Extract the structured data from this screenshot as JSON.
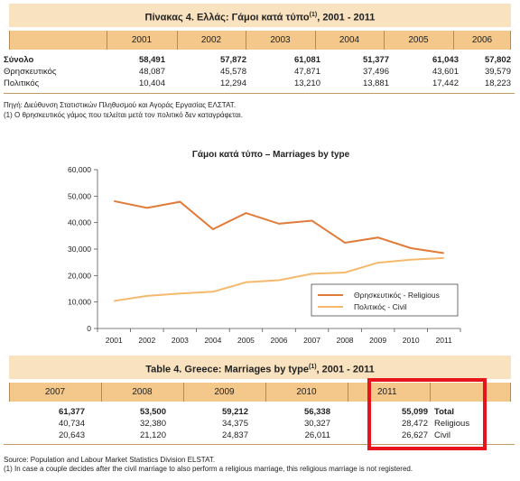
{
  "greek_table": {
    "title": "Πίνακας 4. Ελλάς: Γάμοι κατά τύπο",
    "title_sup": "(1)",
    "title_years": ", 2001 - 2011",
    "years": [
      "2001",
      "2002",
      "2003",
      "2004",
      "2005",
      "2006"
    ],
    "rows": [
      {
        "label": "Σύνολο",
        "values": [
          "58,491",
          "57,872",
          "61,081",
          "51,377",
          "61,043",
          "57,802"
        ],
        "bold": true
      },
      {
        "label": "Θρησκευτικός",
        "values": [
          "48,087",
          "45,578",
          "47,871",
          "37,496",
          "43,601",
          "39,579"
        ],
        "bold": false
      },
      {
        "label": "Πολιτικός",
        "values": [
          "10,404",
          "12,294",
          "13,210",
          "13,881",
          "17,442",
          "18,223"
        ],
        "bold": false
      }
    ],
    "source": "Πηγή: Διεύθυνση Στατιστικών Πληθυσμού και Αγοράς Εργασίας ΕΛΣΤΑΤ.",
    "footnote": "(1) Ο θρησκευτικός γάμος που τελείται μετά τον πολιτικό δεν καταγράφεται."
  },
  "chart_data": {
    "type": "line",
    "title": "Γάμοι κατά τύπο – Marriages by type",
    "categories": [
      "2001",
      "2002",
      "2003",
      "2004",
      "2005",
      "2006",
      "2007",
      "2008",
      "2009",
      "2010",
      "2011"
    ],
    "series": [
      {
        "name": "Θρησκευτικός - Religious",
        "values": [
          48087,
          45578,
          47871,
          37496,
          43601,
          39579,
          40734,
          32380,
          34375,
          30327,
          28472
        ],
        "color": "#e07b39"
      },
      {
        "name": "Πολιτικός - Civil",
        "values": [
          10404,
          12294,
          13210,
          13881,
          17442,
          18223,
          20643,
          21120,
          24837,
          26011,
          26627
        ],
        "color": "#f5b96e"
      }
    ],
    "ylim": [
      0,
      60000
    ],
    "yticks": [
      "0",
      "10,000",
      "20,000",
      "30,000",
      "40,000",
      "50,000",
      "60,000"
    ],
    "grid": false,
    "legend_position": "bottom-right"
  },
  "english_table": {
    "title": "Table 4. Greece: Marriages by type",
    "title_sup": "(1)",
    "title_years": ", 2001 - 2011",
    "years": [
      "2007",
      "2008",
      "2009",
      "2010",
      "2011"
    ],
    "rows": [
      {
        "label": "Total",
        "values": [
          "61,377",
          "53,500",
          "59,212",
          "56,338",
          "55,099"
        ],
        "bold": true
      },
      {
        "label": "Religious",
        "values": [
          "40,734",
          "32,380",
          "34,375",
          "30,327",
          "28,472"
        ],
        "bold": false
      },
      {
        "label": "Civil",
        "values": [
          "20,643",
          "21,120",
          "24,837",
          "26,011",
          "26,627"
        ],
        "bold": false
      }
    ],
    "source": "Source: Population and Labour Market Statistics Division ELSTAT.",
    "footnote": "(1) In case a couple decides after the civil marriage to also perform a religious marriage, this religious marriage is not registered."
  },
  "highlight_color": "#e8141b"
}
